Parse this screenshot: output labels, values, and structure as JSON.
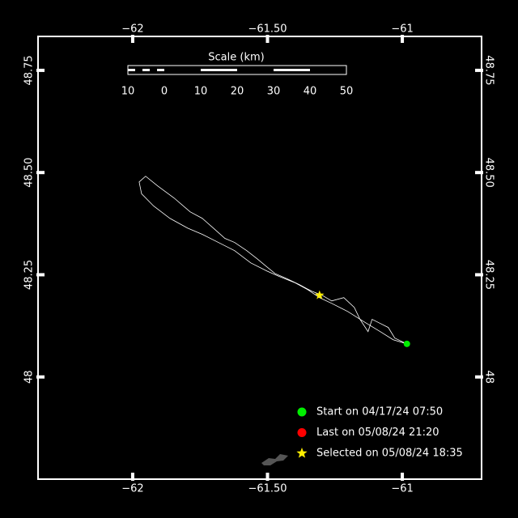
{
  "chart_data": {
    "type": "track",
    "xlim": [
      -62.351,
      -60.706
    ],
    "ylim": [
      47.75,
      48.833
    ],
    "xticks": [
      {
        "value": -62,
        "label": "−62"
      },
      {
        "value": -61.5,
        "label": "−61.50"
      },
      {
        "value": -61,
        "label": "−61"
      }
    ],
    "yticks": [
      48.75,
      {
        "value": 48.5,
        "label": "48.50"
      },
      48.25,
      48
    ],
    "scale": {
      "title": "Scale (km)",
      "labels": [
        "10",
        "0",
        "10",
        "20",
        "30",
        "40",
        "50"
      ]
    },
    "track": {
      "color": "#ffffff",
      "lon": [
        -60.983,
        -61.028,
        -61.052,
        -61.082,
        -61.112,
        -61.127,
        -61.157,
        -61.178,
        -61.217,
        -61.262,
        -61.298,
        -61.337,
        -61.382,
        -61.427,
        -61.472,
        -61.502,
        -61.538,
        -61.577,
        -61.622,
        -61.658,
        -61.697,
        -61.742,
        -61.787,
        -61.847,
        -61.907,
        -61.952,
        -61.976,
        -61.967,
        -61.922,
        -61.862,
        -61.796,
        -61.742,
        -61.682,
        -61.622,
        -61.562,
        -61.502,
        -61.457,
        -61.397,
        -61.352,
        -61.307,
        -61.262,
        -61.202,
        -61.142,
        -61.082,
        -61.034,
        -60.983
      ],
      "lat": [
        48.081,
        48.095,
        48.121,
        48.131,
        48.141,
        48.111,
        48.141,
        48.17,
        48.194,
        48.186,
        48.2,
        48.21,
        48.226,
        48.24,
        48.253,
        48.269,
        48.289,
        48.309,
        48.329,
        48.339,
        48.362,
        48.388,
        48.404,
        48.438,
        48.467,
        48.491,
        48.477,
        48.448,
        48.418,
        48.388,
        48.364,
        48.349,
        48.329,
        48.309,
        48.279,
        48.259,
        48.246,
        48.23,
        48.214,
        48.194,
        48.18,
        48.16,
        48.135,
        48.111,
        48.091,
        48.081
      ]
    },
    "selected": {
      "lon": -61.307,
      "lat": 48.2
    },
    "legend": [
      {
        "label": "Start on 04/17/24 07:50",
        "color": "#00ee00",
        "marker": "circle"
      },
      {
        "label": "Last on 05/08/24 21:20",
        "color": "#ff0000",
        "marker": "circle"
      },
      {
        "label": "Selected on 05/08/24 18:35",
        "color": "#ffee00",
        "marker": "star"
      }
    ]
  }
}
